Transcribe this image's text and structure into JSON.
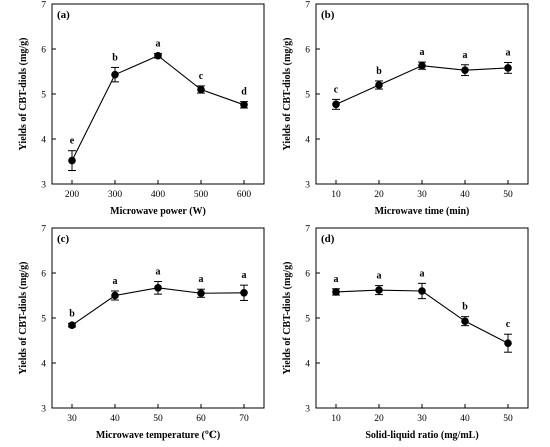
{
  "colors": {
    "line": "#000000",
    "marker": "#000000",
    "background": "#ffffff"
  },
  "chart_data": [
    {
      "panel": "(a)",
      "type": "line",
      "xlabel": "Microwave power (W)",
      "ylabel": "Yields of CBT-diols (mg/g)",
      "x": [
        200,
        300,
        400,
        500,
        600
      ],
      "x_ticks": [
        200,
        300,
        400,
        500,
        600
      ],
      "y_ticks": [
        3,
        4,
        5,
        6,
        7
      ],
      "ylim": [
        3,
        7
      ],
      "series": [
        {
          "values": [
            3.52,
            5.43,
            5.85,
            5.1,
            4.76
          ],
          "errors": [
            0.22,
            0.16,
            0.05,
            0.08,
            0.07
          ],
          "letters": [
            "e",
            "b",
            "a",
            "c",
            "d"
          ]
        }
      ],
      "grid": false
    },
    {
      "panel": "(b)",
      "type": "line",
      "xlabel": "Microwave time (min)",
      "ylabel": "Yields of CBT-diols (mg/g)",
      "x": [
        10,
        20,
        30,
        40,
        50
      ],
      "x_ticks": [
        10,
        20,
        30,
        40,
        50
      ],
      "y_ticks": [
        3,
        4,
        5,
        6,
        7
      ],
      "ylim": [
        3,
        7
      ],
      "series": [
        {
          "values": [
            4.77,
            5.2,
            5.63,
            5.53,
            5.58
          ],
          "errors": [
            0.11,
            0.09,
            0.08,
            0.12,
            0.12
          ],
          "letters": [
            "c",
            "b",
            "a",
            "a",
            "a"
          ]
        }
      ],
      "grid": false
    },
    {
      "panel": "(c)",
      "type": "line",
      "xlabel": "Microwave temperature (℃)",
      "ylabel": "Yields of CBT-diols (mg/g)",
      "x": [
        30,
        40,
        50,
        60,
        70
      ],
      "x_ticks": [
        30,
        40,
        50,
        60,
        70
      ],
      "y_ticks": [
        3,
        4,
        5,
        6,
        7
      ],
      "ylim": [
        3,
        7
      ],
      "series": [
        {
          "values": [
            4.84,
            5.5,
            5.67,
            5.55,
            5.56
          ],
          "errors": [
            0.04,
            0.1,
            0.14,
            0.09,
            0.17
          ],
          "letters": [
            "b",
            "a",
            "a",
            "a",
            "a"
          ]
        }
      ],
      "grid": false
    },
    {
      "panel": "(d)",
      "type": "line",
      "xlabel": "Solid-liquid ratio (mg/mL)",
      "ylabel": "Yields of CBT-diols (mg/g)",
      "x": [
        10,
        20,
        30,
        40,
        50
      ],
      "x_ticks": [
        10,
        20,
        30,
        40,
        50
      ],
      "y_ticks": [
        3,
        4,
        5,
        6,
        7
      ],
      "ylim": [
        3,
        7
      ],
      "series": [
        {
          "values": [
            5.58,
            5.62,
            5.6,
            4.93,
            4.44
          ],
          "errors": [
            0.07,
            0.1,
            0.17,
            0.1,
            0.2
          ],
          "letters": [
            "a",
            "a",
            "a",
            "b",
            "c"
          ]
        }
      ],
      "grid": false
    }
  ]
}
